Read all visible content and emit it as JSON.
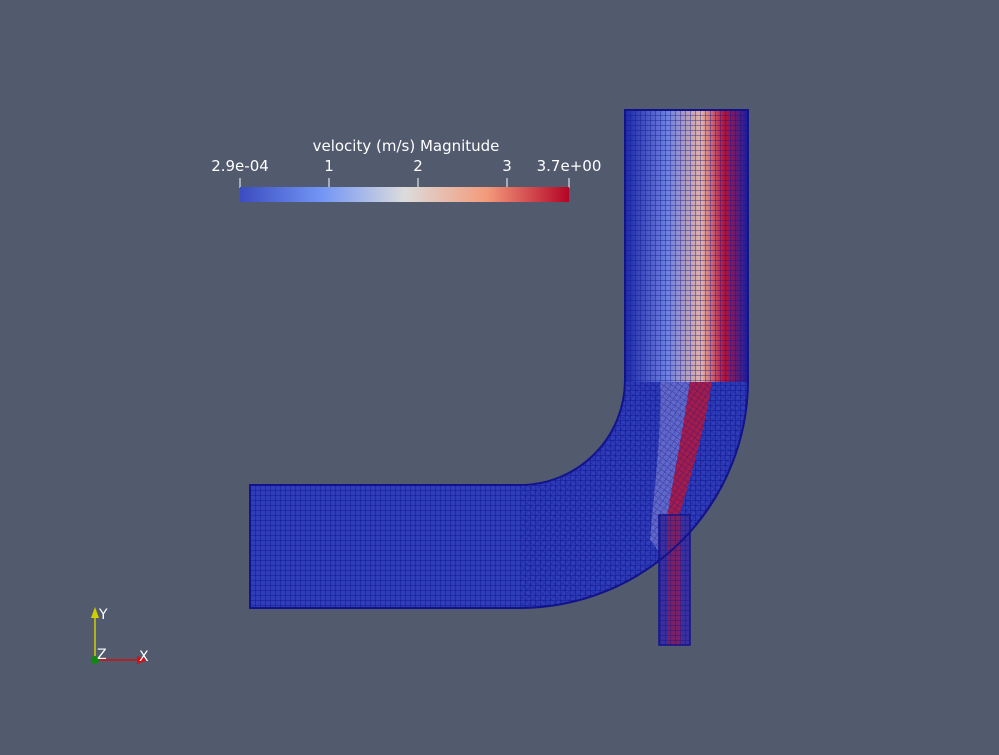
{
  "colorbar": {
    "title": "velocity (m/s) Magnitude",
    "ticks": [
      "2.9e-04",
      "1",
      "2",
      "3",
      "3.7e+00"
    ],
    "colors": {
      "low": "#3b4cc0",
      "mid": "#dddddd",
      "high": "#b40426"
    }
  },
  "axes": {
    "x": "X",
    "y": "Y",
    "z": "Z",
    "colors": {
      "x": "#d01010",
      "y": "#d0d000",
      "z": "#118811"
    }
  },
  "viewport": {
    "background": "#525a6e",
    "mesh_color": "#1a1a9c"
  }
}
